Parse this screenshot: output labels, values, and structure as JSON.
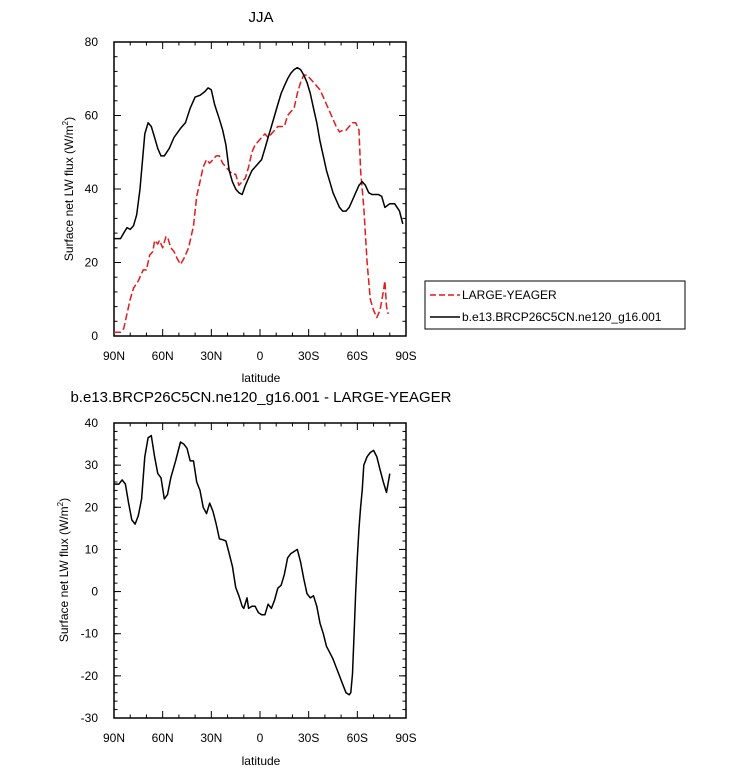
{
  "chart_data": [
    {
      "type": "line",
      "title": "JJA",
      "xlabel": "latitude",
      "ylabel": "Surface net LW flux (W/m",
      "ylabel_sup": "2",
      "ylabel_end": ")",
      "xlim": [
        -90,
        90
      ],
      "ylim": [
        0,
        80
      ],
      "xticks": [
        -90,
        -60,
        -30,
        0,
        30,
        60,
        90
      ],
      "xtick_labels": [
        "90N",
        "60N",
        "30N",
        "0",
        "30S",
        "60S",
        "90S"
      ],
      "yticks": [
        0,
        20,
        40,
        60,
        80
      ],
      "ytick_labels": [
        "0",
        "20",
        "40",
        "60",
        "80"
      ],
      "grid": false,
      "legend": {
        "placement": "right",
        "entries": [
          {
            "label": "LARGE-YEAGER",
            "color": "#e41a1c",
            "dash": "dashed"
          },
          {
            "label": "b.e13.BRCP26C5CN.ne120_g16.001",
            "color": "#000000",
            "dash": "solid"
          }
        ]
      },
      "series": [
        {
          "name": "LARGE-YEAGER",
          "color": "#e41a1c",
          "dash": "dashed",
          "points": [
            [
              -90,
              1
            ],
            [
              -86,
              1
            ],
            [
              -84,
              2
            ],
            [
              -80,
              10
            ],
            [
              -78,
              13
            ],
            [
              -75,
              15
            ],
            [
              -72,
              18
            ],
            [
              -70,
              18
            ],
            [
              -68,
              22
            ],
            [
              -66,
              23
            ],
            [
              -65,
              26
            ],
            [
              -63,
              25
            ],
            [
              -62,
              26
            ],
            [
              -60,
              24
            ],
            [
              -58,
              27
            ],
            [
              -57,
              27
            ],
            [
              -55,
              24
            ],
            [
              -53,
              23
            ],
            [
              -51,
              21
            ],
            [
              -49,
              19.5
            ],
            [
              -47,
              21
            ],
            [
              -44,
              24
            ],
            [
              -41,
              30
            ],
            [
              -39,
              38
            ],
            [
              -37,
              42
            ],
            [
              -35,
              46
            ],
            [
              -33,
              48
            ],
            [
              -31,
              47
            ],
            [
              -29,
              48
            ],
            [
              -27,
              49
            ],
            [
              -25,
              49
            ],
            [
              -23,
              47
            ],
            [
              -21,
              46
            ],
            [
              -19,
              45
            ],
            [
              -17,
              44
            ],
            [
              -15,
              44
            ],
            [
              -13,
              41
            ],
            [
              -11,
              42
            ],
            [
              -9,
              43
            ],
            [
              -7,
              46
            ],
            [
              -5,
              50
            ],
            [
              -3,
              52
            ],
            [
              -1,
              53
            ],
            [
              1,
              54
            ],
            [
              3,
              55
            ],
            [
              5,
              54
            ],
            [
              7,
              55
            ],
            [
              9,
              56
            ],
            [
              11,
              57
            ],
            [
              13,
              57
            ],
            [
              15,
              57
            ],
            [
              17,
              60
            ],
            [
              19,
              61
            ],
            [
              21,
              62
            ],
            [
              23,
              66
            ],
            [
              25,
              69
            ],
            [
              27,
              71
            ],
            [
              29,
              71
            ],
            [
              31,
              70
            ],
            [
              33,
              69
            ],
            [
              35,
              68
            ],
            [
              37,
              67
            ],
            [
              39,
              65
            ],
            [
              41,
              63
            ],
            [
              43,
              61
            ],
            [
              45,
              59
            ],
            [
              47,
              57
            ],
            [
              49,
              55.5
            ],
            [
              51,
              56
            ],
            [
              53,
              56
            ],
            [
              55,
              57
            ],
            [
              57,
              58
            ],
            [
              59,
              58
            ],
            [
              61,
              56
            ],
            [
              62,
              45
            ],
            [
              64,
              35
            ],
            [
              66,
              20
            ],
            [
              68,
              10
            ],
            [
              70,
              7
            ],
            [
              72,
              5
            ],
            [
              74,
              7
            ],
            [
              76,
              12
            ],
            [
              77,
              15
            ],
            [
              78,
              8
            ],
            [
              79,
              6
            ]
          ]
        },
        {
          "name": "b.e13.BRCP26C5CN.ne120_g16.001",
          "color": "#000000",
          "dash": "solid",
          "points": [
            [
              -90,
              26.5
            ],
            [
              -86,
              26.5
            ],
            [
              -84,
              28
            ],
            [
              -82,
              29.5
            ],
            [
              -80,
              29
            ],
            [
              -78,
              30
            ],
            [
              -76,
              33
            ],
            [
              -74,
              40
            ],
            [
              -72,
              50
            ],
            [
              -71,
              55
            ],
            [
              -69,
              58
            ],
            [
              -67,
              57
            ],
            [
              -65,
              54
            ],
            [
              -63,
              51
            ],
            [
              -61,
              49
            ],
            [
              -59,
              49
            ],
            [
              -56,
              51
            ],
            [
              -53,
              54
            ],
            [
              -49,
              56.5
            ],
            [
              -46,
              58
            ],
            [
              -43,
              62
            ],
            [
              -40,
              65
            ],
            [
              -37,
              65.5
            ],
            [
              -34,
              66.5
            ],
            [
              -32,
              67.5
            ],
            [
              -30,
              67
            ],
            [
              -28,
              63
            ],
            [
              -25,
              59
            ],
            [
              -23,
              56
            ],
            [
              -21,
              52
            ],
            [
              -19,
              45
            ],
            [
              -17,
              42
            ],
            [
              -15,
              40
            ],
            [
              -13,
              39
            ],
            [
              -11,
              38.5
            ],
            [
              -9,
              41
            ],
            [
              -7,
              43
            ],
            [
              -5,
              45
            ],
            [
              -3,
              46
            ],
            [
              -1,
              47
            ],
            [
              1,
              48
            ],
            [
              3,
              51
            ],
            [
              5,
              54
            ],
            [
              7,
              57
            ],
            [
              9,
              60
            ],
            [
              11,
              63
            ],
            [
              13,
              66
            ],
            [
              15,
              68
            ],
            [
              17,
              70
            ],
            [
              19,
              71.5
            ],
            [
              21,
              72.5
            ],
            [
              23,
              73
            ],
            [
              25,
              72.5
            ],
            [
              27,
              71
            ],
            [
              29,
              69
            ],
            [
              31,
              66
            ],
            [
              33,
              62
            ],
            [
              35,
              58
            ],
            [
              37,
              53
            ],
            [
              39,
              49
            ],
            [
              41,
              45
            ],
            [
              43,
              42
            ],
            [
              45,
              39
            ],
            [
              47,
              37
            ],
            [
              49,
              35
            ],
            [
              51,
              34
            ],
            [
              53,
              34
            ],
            [
              55,
              35
            ],
            [
              57,
              37
            ],
            [
              59,
              39
            ],
            [
              61,
              41
            ],
            [
              63,
              42
            ],
            [
              65,
              41
            ],
            [
              67,
              39
            ],
            [
              69,
              38.5
            ],
            [
              71,
              38.5
            ],
            [
              73,
              38.5
            ],
            [
              75,
              38
            ],
            [
              77,
              35
            ],
            [
              80,
              36
            ],
            [
              83,
              36
            ],
            [
              86,
              34
            ],
            [
              88,
              30.5
            ]
          ]
        }
      ]
    },
    {
      "type": "line",
      "title": "b.e13.BRCP26C5CN.ne120_g16.001 - LARGE-YEAGER",
      "xlabel": "latitude",
      "ylabel": "Surface net LW flux (W/m",
      "ylabel_sup": "2",
      "ylabel_end": ")",
      "xlim": [
        -90,
        90
      ],
      "ylim": [
        -30,
        40
      ],
      "xticks": [
        -90,
        -60,
        -30,
        0,
        30,
        60,
        90
      ],
      "xtick_labels": [
        "90N",
        "60N",
        "30N",
        "0",
        "30S",
        "60S",
        "90S"
      ],
      "yticks": [
        -30,
        -20,
        -10,
        0,
        10,
        20,
        30,
        40
      ],
      "ytick_labels": [
        "-30",
        "-20",
        "-10",
        "0",
        "10",
        "20",
        "30",
        "40"
      ],
      "grid": false,
      "series": [
        {
          "color": "#000000",
          "dash": "solid",
          "points": [
            [
              -90,
              25.5
            ],
            [
              -87,
              25.5
            ],
            [
              -85,
              26.5
            ],
            [
              -83,
              25.5
            ],
            [
              -81,
              21
            ],
            [
              -79,
              17
            ],
            [
              -77,
              16
            ],
            [
              -75,
              18
            ],
            [
              -73,
              22
            ],
            [
              -71,
              32
            ],
            [
              -69,
              36.5
            ],
            [
              -67,
              37
            ],
            [
              -65,
              32
            ],
            [
              -63,
              28
            ],
            [
              -61,
              27
            ],
            [
              -59,
              22
            ],
            [
              -57,
              23
            ],
            [
              -55,
              27
            ],
            [
              -52,
              31
            ],
            [
              -49,
              35.5
            ],
            [
              -47,
              35
            ],
            [
              -45,
              34
            ],
            [
              -43,
              31
            ],
            [
              -41,
              31
            ],
            [
              -39,
              26
            ],
            [
              -37,
              24
            ],
            [
              -35,
              20
            ],
            [
              -33,
              18.5
            ],
            [
              -31,
              21
            ],
            [
              -29,
              19
            ],
            [
              -27,
              16
            ],
            [
              -25,
              12.5
            ],
            [
              -23,
              12.3
            ],
            [
              -21,
              12
            ],
            [
              -19,
              9
            ],
            [
              -17,
              6
            ],
            [
              -15,
              1
            ],
            [
              -13,
              -1
            ],
            [
              -11,
              -3.5
            ],
            [
              -10,
              -4
            ],
            [
              -8,
              -1.5
            ],
            [
              -7,
              -4
            ],
            [
              -5,
              -3.5
            ],
            [
              -3,
              -3.5
            ],
            [
              -1,
              -5
            ],
            [
              1,
              -5.5
            ],
            [
              3,
              -5.5
            ],
            [
              5,
              -3
            ],
            [
              7,
              -4
            ],
            [
              9,
              -2
            ],
            [
              11,
              0.8
            ],
            [
              13,
              1.5
            ],
            [
              15,
              4
            ],
            [
              17,
              8
            ],
            [
              19,
              9
            ],
            [
              21,
              9.5
            ],
            [
              23,
              10
            ],
            [
              25,
              7
            ],
            [
              27,
              3
            ],
            [
              29,
              -0.5
            ],
            [
              31,
              -1.5
            ],
            [
              33,
              -1
            ],
            [
              35,
              -3.5
            ],
            [
              37,
              -7.5
            ],
            [
              39,
              -10
            ],
            [
              41,
              -13
            ],
            [
              43,
              -14.5
            ],
            [
              45,
              -16
            ],
            [
              47,
              -18
            ],
            [
              49,
              -20
            ],
            [
              51,
              -22
            ],
            [
              53,
              -24
            ],
            [
              55,
              -24.5
            ],
            [
              56,
              -24
            ],
            [
              57,
              -19.5
            ],
            [
              58,
              -10
            ],
            [
              59,
              0
            ],
            [
              60,
              8
            ],
            [
              61,
              15
            ],
            [
              62,
              20
            ],
            [
              63,
              24
            ],
            [
              64,
              30
            ],
            [
              66,
              32
            ],
            [
              68,
              33
            ],
            [
              70,
              33.5
            ],
            [
              72,
              32
            ],
            [
              74,
              29
            ],
            [
              76,
              26
            ],
            [
              78,
              23.5
            ],
            [
              80,
              28
            ]
          ]
        }
      ]
    }
  ]
}
